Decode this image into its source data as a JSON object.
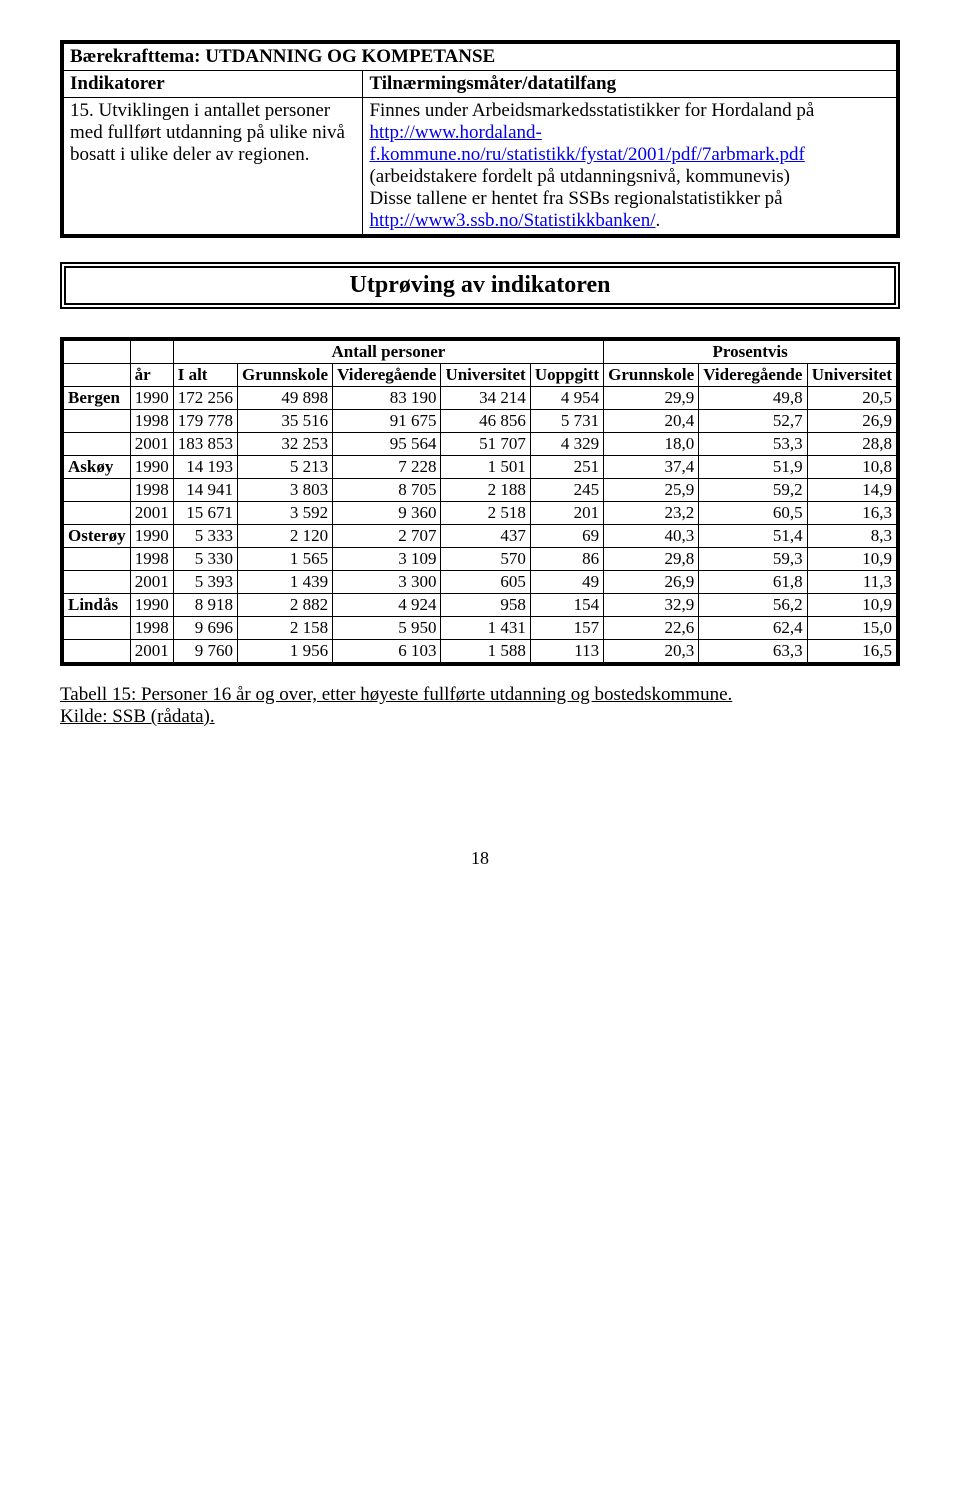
{
  "topTable": {
    "themeLabel": "Bærekrafttema: UTDANNING OG KOMPETANSE",
    "indCol": "Indikatorer",
    "apprCol": "Tilnærmingsmåter/datatilfang",
    "indicatorText": "15. Utviklingen i antallet personer med fullført utdanning på ulike nivå bosatt i ulike deler av regionen.",
    "approach_pre1": "Finnes under Arbeidsmarkedsstatistikker for Hordaland på ",
    "link1": "http://www.hordaland-f.kommune.no/ru/statistikk/fystat/2001/pdf/7arbmark.pdf",
    "approach_mid1": " (arbeidstakere fordelt på utdanningsnivå, kommunevis)",
    "approach_line2": "Disse tallene er hentet fra SSBs regionalstatistikker på ",
    "link2": "http://www3.ssb.no/Statistikkbanken/",
    "approach_end": "."
  },
  "bannerTitle": "Utprøving av indikatoren",
  "dataTable": {
    "group1": "Antall personer",
    "group2": "Prosentvis",
    "h_year": "år",
    "h_ialt": "I alt",
    "h_grunn": "Grunnskole",
    "h_vid": "Videregående",
    "h_univ": "Universitet",
    "h_uopp": "Uoppgitt",
    "rows": [
      {
        "loc": "Bergen",
        "year": "1990",
        "ialt": "172 256",
        "g": "49 898",
        "v": "83 190",
        "u": "34 214",
        "uo": "4 954",
        "pg": "29,9",
        "pv": "49,8",
        "pu": "20,5"
      },
      {
        "loc": "",
        "year": "1998",
        "ialt": "179 778",
        "g": "35 516",
        "v": "91 675",
        "u": "46 856",
        "uo": "5 731",
        "pg": "20,4",
        "pv": "52,7",
        "pu": "26,9"
      },
      {
        "loc": "",
        "year": "2001",
        "ialt": "183 853",
        "g": "32 253",
        "v": "95 564",
        "u": "51 707",
        "uo": "4 329",
        "pg": "18,0",
        "pv": "53,3",
        "pu": "28,8"
      },
      {
        "loc": "Askøy",
        "year": "1990",
        "ialt": "14 193",
        "g": "5 213",
        "v": "7 228",
        "u": "1 501",
        "uo": "251",
        "pg": "37,4",
        "pv": "51,9",
        "pu": "10,8"
      },
      {
        "loc": "",
        "year": "1998",
        "ialt": "14 941",
        "g": "3 803",
        "v": "8 705",
        "u": "2 188",
        "uo": "245",
        "pg": "25,9",
        "pv": "59,2",
        "pu": "14,9"
      },
      {
        "loc": "",
        "year": "2001",
        "ialt": "15 671",
        "g": "3 592",
        "v": "9 360",
        "u": "2 518",
        "uo": "201",
        "pg": "23,2",
        "pv": "60,5",
        "pu": "16,3"
      },
      {
        "loc": "Osterøy",
        "year": "1990",
        "ialt": "5 333",
        "g": "2 120",
        "v": "2 707",
        "u": "437",
        "uo": "69",
        "pg": "40,3",
        "pv": "51,4",
        "pu": "8,3"
      },
      {
        "loc": "",
        "year": "1998",
        "ialt": "5 330",
        "g": "1 565",
        "v": "3 109",
        "u": "570",
        "uo": "86",
        "pg": "29,8",
        "pv": "59,3",
        "pu": "10,9"
      },
      {
        "loc": "",
        "year": "2001",
        "ialt": "5 393",
        "g": "1 439",
        "v": "3 300",
        "u": "605",
        "uo": "49",
        "pg": "26,9",
        "pv": "61,8",
        "pu": "11,3"
      },
      {
        "loc": "Lindås",
        "year": "1990",
        "ialt": "8 918",
        "g": "2 882",
        "v": "4 924",
        "u": "958",
        "uo": "154",
        "pg": "32,9",
        "pv": "56,2",
        "pu": "10,9"
      },
      {
        "loc": "",
        "year": "1998",
        "ialt": "9 696",
        "g": "2 158",
        "v": "5 950",
        "u": "1 431",
        "uo": "157",
        "pg": "22,6",
        "pv": "62,4",
        "pu": "15,0"
      },
      {
        "loc": "",
        "year": "2001",
        "ialt": "9 760",
        "g": "1 956",
        "v": "6 103",
        "u": "1 588",
        "uo": "113",
        "pg": "20,3",
        "pv": "63,3",
        "pu": "16,5"
      }
    ]
  },
  "caption1": "Tabell 15: Personer 16 år og over, etter høyeste fullførte utdanning og bostedskommune.",
  "caption2": "Kilde: SSB (rådata).",
  "pageNumber": "18"
}
